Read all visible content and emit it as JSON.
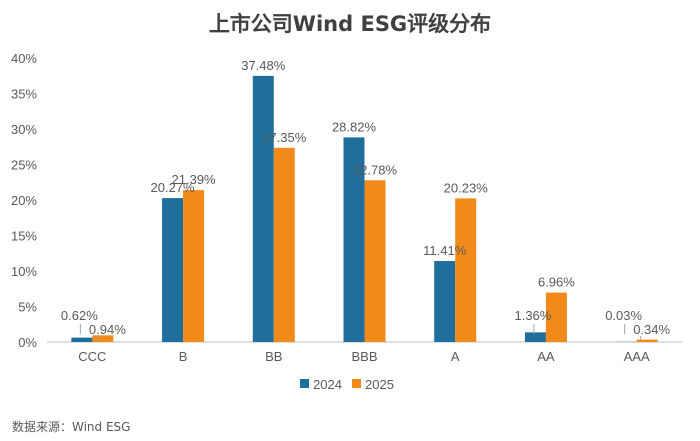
{
  "title": "上市公司Wind ESG评级分布",
  "source": "数据来源：Wind ESG",
  "chart_data": {
    "type": "bar",
    "title": "上市公司Wind ESG评级分布",
    "xlabel": "",
    "ylabel": "",
    "categories": [
      "CCC",
      "B",
      "BB",
      "BBB",
      "A",
      "AA",
      "AAA"
    ],
    "ylim": [
      0,
      40
    ],
    "y_ticks": [
      "0%",
      "5%",
      "10%",
      "15%",
      "20%",
      "25%",
      "30%",
      "35%",
      "40%"
    ],
    "grid": false,
    "legend_position": "bottom",
    "series": [
      {
        "name": "2024",
        "color": "#1F6E9C",
        "values": [
          0.62,
          20.27,
          37.48,
          28.82,
          11.41,
          1.36,
          0.03
        ],
        "labels": [
          "0.62%",
          "20.27%",
          "37.48%",
          "28.82%",
          "11.41%",
          "1.36%",
          "0.03%"
        ]
      },
      {
        "name": "2025",
        "color": "#F28A1B",
        "values": [
          0.94,
          21.39,
          27.35,
          22.78,
          20.23,
          6.96,
          0.34
        ],
        "labels": [
          "0.94%",
          "21.39%",
          "27.35%",
          "22.78%",
          "20.23%",
          "6.96%",
          "0.34%"
        ]
      }
    ]
  }
}
